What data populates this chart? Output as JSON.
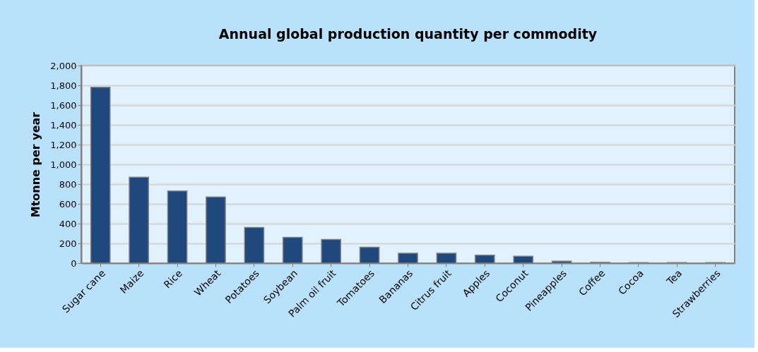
{
  "chart_data": {
    "type": "bar",
    "title": "Annual global production quantity per commodity",
    "ylabel": "Mtonne per year",
    "categories": [
      "Sugar cane",
      "Maize",
      "Rice",
      "Wheat",
      "Potatoes",
      "Soybean",
      "Palm oil fruit",
      "Tomatoes",
      "Bananas",
      "Citrus fruit",
      "Apples",
      "Coconut",
      "Pineapples",
      "Coffee",
      "Cocoa",
      "Tea",
      "Strawberries"
    ],
    "values": [
      1780,
      870,
      730,
      670,
      360,
      260,
      240,
      160,
      100,
      100,
      80,
      70,
      20,
      8,
      5,
      5,
      5
    ],
    "color": "#1f497d",
    "ylim": [
      0,
      2000
    ],
    "yticks": [
      0,
      {
        "value": 200,
        "label": "200"
      },
      {
        "value": 400,
        "label": "400"
      },
      {
        "value": 600,
        "label": "600"
      },
      {
        "value": 800,
        "label": "800"
      },
      {
        "value": 1000,
        "label": "1,000"
      },
      {
        "value": 1200,
        "label": "1,200"
      },
      {
        "value": 1400,
        "label": "1,400"
      },
      {
        "value": 1600,
        "label": "1,600"
      },
      {
        "value": 1800,
        "label": "1,800"
      },
      {
        "value": 2000,
        "label": "2,000"
      }
    ],
    "grid": "y"
  }
}
